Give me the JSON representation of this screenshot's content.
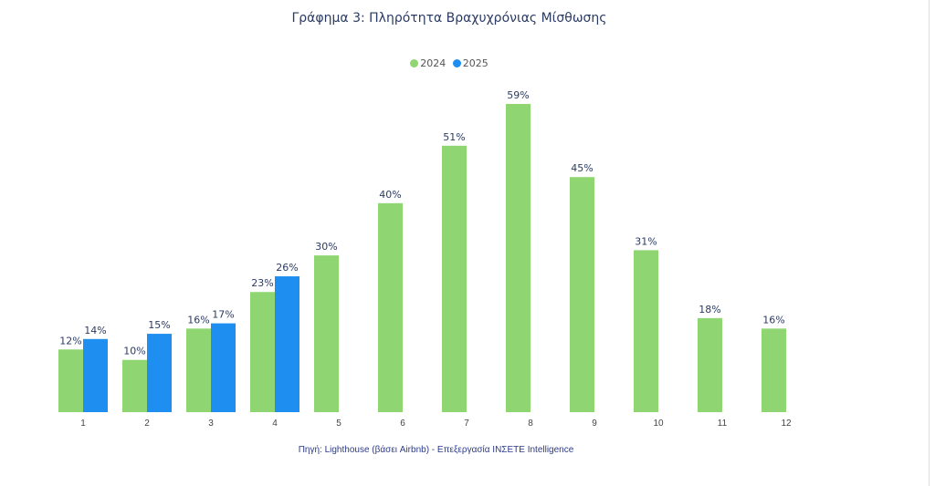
{
  "chart_data": {
    "type": "bar",
    "title": "Γράφημα 3: Πληρότητα Βραχυχρόνιας Μίσθωσης",
    "categories": [
      "1",
      "2",
      "3",
      "4",
      "5",
      "6",
      "7",
      "8",
      "9",
      "10",
      "11",
      "12"
    ],
    "series": [
      {
        "name": "2024",
        "color": "#8fd672",
        "values": [
          12,
          10,
          16,
          23,
          30,
          40,
          51,
          59,
          45,
          31,
          18,
          16
        ]
      },
      {
        "name": "2025",
        "color": "#1e8ff0",
        "values": [
          14,
          15,
          17,
          26,
          null,
          null,
          null,
          null,
          null,
          null,
          null,
          null
        ]
      }
    ],
    "value_suffix": "%",
    "xlabel": "",
    "ylabel": "",
    "ylim": [
      0,
      59
    ],
    "grid": false,
    "legend_position": "top-center",
    "source": "Πηγή: Lighthouse (βάσει Airbnb) - Επεξεργασία INΣΕΤΕ Intelligence"
  }
}
